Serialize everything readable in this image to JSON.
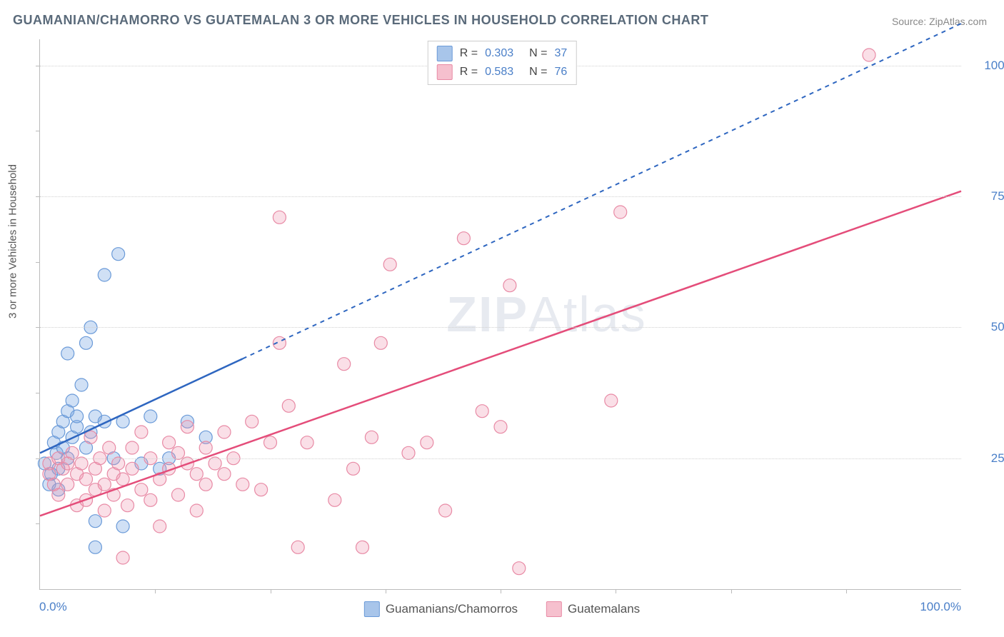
{
  "title": "GUAMANIAN/CHAMORRO VS GUATEMALAN 3 OR MORE VEHICLES IN HOUSEHOLD CORRELATION CHART",
  "source": "Source: ZipAtlas.com",
  "ylabel": "3 or more Vehicles in Household",
  "watermark_a": "ZIP",
  "watermark_b": "Atlas",
  "chart": {
    "type": "scatter",
    "xlim": [
      0,
      100
    ],
    "ylim": [
      0,
      105
    ],
    "yticks": [
      25,
      50,
      75,
      100
    ],
    "ytick_labels": [
      "25.0%",
      "50.0%",
      "75.0%",
      "100.0%"
    ],
    "xtick_labels": [
      "0.0%",
      "100.0%"
    ],
    "x_minor_ticks": [
      12.5,
      25,
      37.5,
      50,
      62.5,
      75,
      87.5
    ],
    "y_minor_ticks": [
      12.5,
      37.5,
      62.5,
      87.5
    ],
    "grid_color": "#d0d0d0",
    "background_color": "#ffffff",
    "marker_radius": 9,
    "marker_stroke_width": 1.2,
    "series": [
      {
        "name": "Guamanians/Chamorros",
        "color_fill": "rgba(120,165,225,0.35)",
        "color_stroke": "#6a9ad8",
        "swatch_fill": "#a8c5ea",
        "swatch_border": "#6a9ad8",
        "R": "0.303",
        "N": "37",
        "trend": {
          "x1": 0,
          "y1": 26,
          "x2_solid": 22,
          "y2_solid": 44,
          "x2_dash": 100,
          "y2_dash": 108,
          "stroke": "#2e66c0",
          "width": 2.5,
          "dash": "6,6"
        },
        "points": [
          [
            0.5,
            24
          ],
          [
            1,
            20
          ],
          [
            1.2,
            22
          ],
          [
            1.5,
            28
          ],
          [
            1.8,
            26
          ],
          [
            2,
            23
          ],
          [
            2,
            30
          ],
          [
            2,
            19
          ],
          [
            2.5,
            32
          ],
          [
            2.5,
            27
          ],
          [
            3,
            25
          ],
          [
            3,
            34
          ],
          [
            3,
            45
          ],
          [
            3.5,
            29
          ],
          [
            3.5,
            36
          ],
          [
            4,
            31
          ],
          [
            4,
            33
          ],
          [
            4.5,
            39
          ],
          [
            5,
            27
          ],
          [
            5,
            47
          ],
          [
            5.5,
            30
          ],
          [
            5.5,
            50
          ],
          [
            6,
            33
          ],
          [
            6,
            13
          ],
          [
            6,
            8
          ],
          [
            7,
            32
          ],
          [
            7,
            60
          ],
          [
            8,
            25
          ],
          [
            8.5,
            64
          ],
          [
            9,
            32
          ],
          [
            9,
            12
          ],
          [
            11,
            24
          ],
          [
            12,
            33
          ],
          [
            13,
            23
          ],
          [
            14,
            25
          ],
          [
            16,
            32
          ],
          [
            18,
            29
          ]
        ]
      },
      {
        "name": "Guatemalans",
        "color_fill": "rgba(240,150,175,0.30)",
        "color_stroke": "#e88aa5",
        "swatch_fill": "#f6c0ce",
        "swatch_border": "#e88aa5",
        "R": "0.583",
        "N": "76",
        "trend": {
          "x1": 0,
          "y1": 14,
          "x2_solid": 100,
          "y2_solid": 76,
          "stroke": "#e44d7a",
          "width": 2.5
        },
        "points": [
          [
            1,
            22
          ],
          [
            1,
            24
          ],
          [
            1.5,
            20
          ],
          [
            2,
            25
          ],
          [
            2,
            18
          ],
          [
            2.5,
            23
          ],
          [
            3,
            24
          ],
          [
            3,
            20
          ],
          [
            3.5,
            26
          ],
          [
            4,
            22
          ],
          [
            4,
            16
          ],
          [
            4.5,
            24
          ],
          [
            5,
            21
          ],
          [
            5,
            17
          ],
          [
            5.5,
            29
          ],
          [
            6,
            23
          ],
          [
            6,
            19
          ],
          [
            6.5,
            25
          ],
          [
            7,
            15
          ],
          [
            7,
            20
          ],
          [
            7.5,
            27
          ],
          [
            8,
            22
          ],
          [
            8,
            18
          ],
          [
            8.5,
            24
          ],
          [
            9,
            21
          ],
          [
            9,
            6
          ],
          [
            9.5,
            16
          ],
          [
            10,
            27
          ],
          [
            10,
            23
          ],
          [
            11,
            19
          ],
          [
            11,
            30
          ],
          [
            12,
            17
          ],
          [
            12,
            25
          ],
          [
            13,
            12
          ],
          [
            13,
            21
          ],
          [
            14,
            23
          ],
          [
            14,
            28
          ],
          [
            15,
            26
          ],
          [
            15,
            18
          ],
          [
            16,
            24
          ],
          [
            16,
            31
          ],
          [
            17,
            22
          ],
          [
            17,
            15
          ],
          [
            18,
            20
          ],
          [
            18,
            27
          ],
          [
            19,
            24
          ],
          [
            20,
            30
          ],
          [
            20,
            22
          ],
          [
            21,
            25
          ],
          [
            22,
            20
          ],
          [
            23,
            32
          ],
          [
            24,
            19
          ],
          [
            25,
            28
          ],
          [
            26,
            47
          ],
          [
            26,
            71
          ],
          [
            27,
            35
          ],
          [
            28,
            8
          ],
          [
            29,
            28
          ],
          [
            32,
            17
          ],
          [
            33,
            43
          ],
          [
            34,
            23
          ],
          [
            35,
            8
          ],
          [
            36,
            29
          ],
          [
            37,
            47
          ],
          [
            38,
            62
          ],
          [
            40,
            26
          ],
          [
            42,
            28
          ],
          [
            44,
            15
          ],
          [
            46,
            67
          ],
          [
            48,
            34
          ],
          [
            50,
            31
          ],
          [
            51,
            58
          ],
          [
            52,
            4
          ],
          [
            62,
            36
          ],
          [
            63,
            72
          ],
          [
            90,
            102
          ]
        ]
      }
    ],
    "legend_bottom": [
      {
        "label": "Guamanians/Chamorros",
        "swatch_fill": "#a8c5ea",
        "swatch_border": "#6a9ad8"
      },
      {
        "label": "Guatemalans",
        "swatch_fill": "#f6c0ce",
        "swatch_border": "#e88aa5"
      }
    ]
  }
}
